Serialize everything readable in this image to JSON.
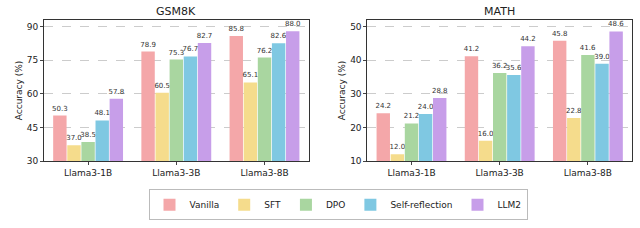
{
  "chart_data": [
    {
      "type": "bar",
      "title": "GSM8K",
      "y_label": "Accuracy (%)",
      "categories": [
        "Llama3-1B",
        "Llama3-3B",
        "Llama3-8B"
      ],
      "series": [
        {
          "name": "Vanilla",
          "color": "#f4a7a9",
          "values": [
            50.3,
            78.9,
            85.8
          ]
        },
        {
          "name": "SFT",
          "color": "#f5dc8c",
          "values": [
            37.0,
            60.5,
            65.1
          ],
          "value_labels": [
            "37.0",
            "60.5",
            "65.1"
          ]
        },
        {
          "name": "DPO",
          "color": "#a9d6a0",
          "values": [
            38.5,
            75.3,
            76.2
          ]
        },
        {
          "name": "Self-reflection",
          "color": "#7fc8e2",
          "values": [
            48.1,
            76.7,
            82.6
          ]
        },
        {
          "name": "LLM2",
          "color": "#c79ee9",
          "values": [
            57.8,
            82.7,
            88.0
          ],
          "value_labels": [
            "57.8",
            "82.7",
            "88.0"
          ]
        }
      ],
      "ylim": [
        30,
        93
      ],
      "yticks": [
        30,
        45,
        60,
        75,
        90
      ],
      "grid": true,
      "data_labels": true,
      "legend": "bottom"
    },
    {
      "type": "bar",
      "title": "MATH",
      "y_label": "Accuracy (%)",
      "categories": [
        "Llama3-1B",
        "Llama3-3B",
        "Llama3-8B"
      ],
      "series": [
        {
          "name": "Vanilla",
          "color": "#f4a7a9",
          "values": [
            24.2,
            41.2,
            45.8
          ]
        },
        {
          "name": "SFT",
          "color": "#f5dc8c",
          "values": [
            12.0,
            16.0,
            22.8
          ],
          "value_labels": [
            "12.0",
            "16.0",
            "22.8"
          ]
        },
        {
          "name": "DPO",
          "color": "#a9d6a0",
          "values": [
            21.2,
            36.2,
            41.6
          ]
        },
        {
          "name": "Self-reflection",
          "color": "#7fc8e2",
          "values": [
            24.0,
            35.6,
            39.0
          ],
          "value_labels": [
            "24.0",
            "35.6",
            "39.0"
          ]
        },
        {
          "name": "LLM2",
          "color": "#c79ee9",
          "values": [
            28.8,
            44.2,
            48.6
          ]
        }
      ],
      "ylim": [
        10,
        52
      ],
      "yticks": [
        10,
        20,
        30,
        40,
        50
      ],
      "grid": true,
      "data_labels": true,
      "legend": "bottom"
    }
  ]
}
